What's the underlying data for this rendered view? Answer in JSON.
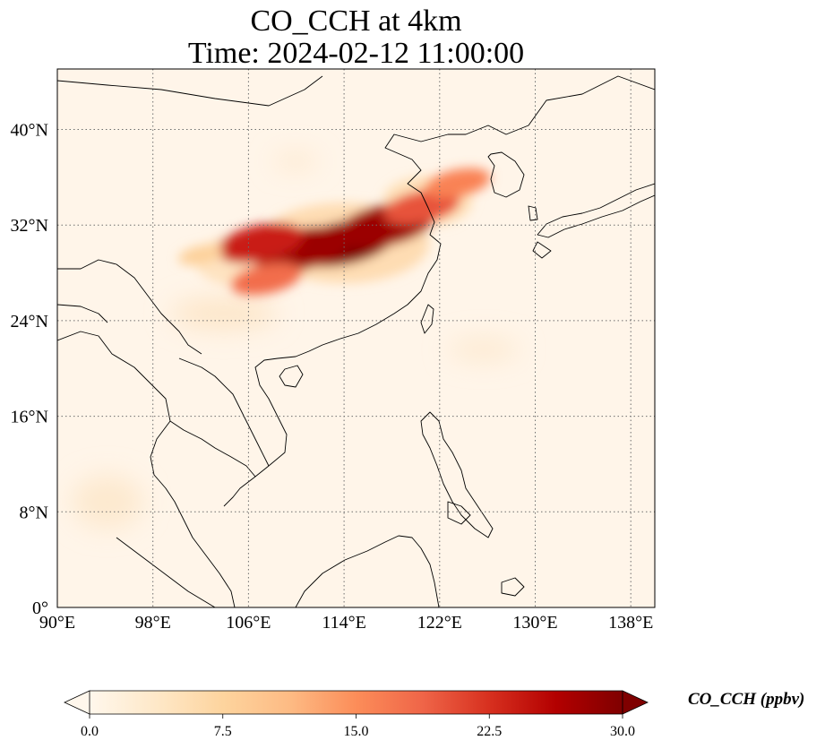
{
  "title": {
    "line1": "CO_CCH at 4km",
    "line2": "Time: 2024-02-12 11:00:00"
  },
  "map": {
    "lon_ticks": [
      "90°E",
      "98°E",
      "106°E",
      "114°E",
      "122°E",
      "130°E",
      "138°E"
    ],
    "lat_ticks": [
      "40°N",
      "32°N",
      "24°N",
      "16°N",
      "8°N",
      "0°"
    ],
    "lon_range": [
      90,
      140
    ],
    "lat_range": [
      0,
      45
    ],
    "gridline_style": "dotted",
    "plume": [
      {
        "lon": 114,
        "lat": 30.5,
        "value": 30.0
      },
      {
        "lon": 110.5,
        "lat": 30.0,
        "value": 28.0
      },
      {
        "lon": 107,
        "lat": 30.5,
        "value": 24.0
      },
      {
        "lon": 117.5,
        "lat": 32.0,
        "value": 28.0
      },
      {
        "lon": 120.5,
        "lat": 33.5,
        "value": 20.0
      },
      {
        "lon": 123.5,
        "lat": 35.5,
        "value": 16.0
      },
      {
        "lon": 107.5,
        "lat": 27.5,
        "value": 18.0
      },
      {
        "lon": 102,
        "lat": 29.5,
        "value": 8.0
      }
    ]
  },
  "colorbar": {
    "label": "CO_CCH (ppbv)",
    "ticks": [
      "0.0",
      "7.5",
      "15.0",
      "22.5",
      "30.0"
    ],
    "range": [
      0,
      30
    ],
    "colormap": [
      "#fff7ec",
      "#fee8c8",
      "#fdd49e",
      "#fdbb84",
      "#fc8d59",
      "#ef6548",
      "#d7301f",
      "#b30000",
      "#7f0000"
    ],
    "extend": "both"
  },
  "colors": {
    "background_map": "#fff5e9",
    "coastline": "#000000",
    "gridline": "#6e6e6e"
  }
}
